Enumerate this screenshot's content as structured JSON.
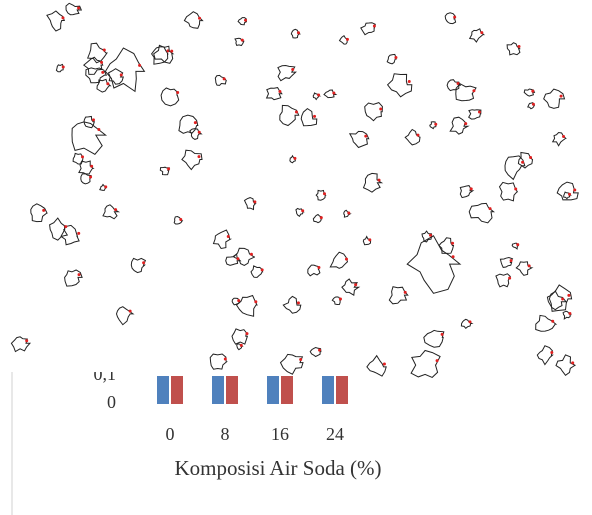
{
  "chart_data": {
    "type": "bar",
    "x_label": "Komposisi Air Soda (%)",
    "categories": [
      "0",
      "8",
      "16",
      "24"
    ],
    "series": [
      {
        "color": "#4f81bd",
        "values": [
          0.1,
          0.1,
          0.1,
          0.1
        ]
      },
      {
        "color": "#c0504d",
        "values": [
          0.1,
          0.1,
          0.1,
          0.1
        ]
      }
    ],
    "ylim": [
      0,
      0.1
    ],
    "yticks": [
      0,
      {
        "value": 0.1,
        "label": "0,1"
      }
    ]
  }
}
